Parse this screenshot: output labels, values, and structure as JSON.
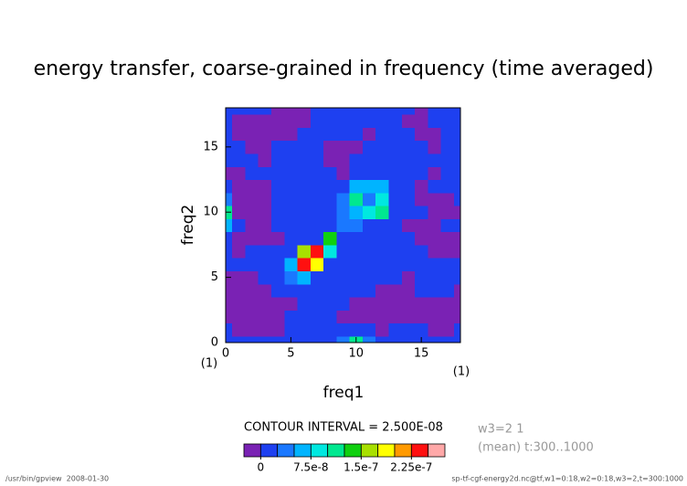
{
  "chart_data": {
    "type": "contour",
    "title": "energy transfer, coarse-grained in frequency (time averaged)",
    "x_label": "freq1",
    "y_label": "freq2",
    "x_unit": "(1)",
    "y_unit": "(1)",
    "xlim": [
      0,
      18
    ],
    "ylim": [
      0,
      18
    ],
    "xticks": [
      0,
      5,
      10,
      15
    ],
    "yticks": [
      0,
      5,
      10,
      15
    ],
    "x": [
      0,
      1,
      2,
      3,
      4,
      5,
      6,
      7,
      8,
      9,
      10,
      11,
      12,
      13,
      14,
      15,
      16,
      17,
      18
    ],
    "y": [
      0,
      1,
      2,
      3,
      4,
      5,
      6,
      7,
      8,
      9,
      10,
      11,
      12,
      13,
      14,
      15,
      16,
      17,
      18
    ],
    "z": [
      [
        1e-08,
        1e-08,
        1e-08,
        1e-08,
        1e-08,
        1e-08,
        1e-08,
        1e-08,
        1e-08,
        4e-08,
        1e-07,
        4e-08,
        1e-08,
        1e-08,
        1e-08,
        1e-08,
        1e-08,
        1e-08,
        1e-08
      ],
      [
        1e-08,
        -1e-08,
        -1e-08,
        -1e-08,
        -1e-08,
        1e-08,
        1e-08,
        1e-08,
        1e-08,
        1e-08,
        1e-08,
        1e-08,
        -1e-08,
        1e-08,
        1e-08,
        1e-08,
        -1e-08,
        -1e-08,
        1e-08
      ],
      [
        -1e-08,
        -1e-08,
        -1e-08,
        -1e-08,
        -1e-08,
        1e-08,
        1e-08,
        1e-08,
        1e-08,
        -1e-08,
        -1e-08,
        -1e-08,
        -1e-08,
        -1e-08,
        -1e-08,
        -1e-08,
        -1e-08,
        -1e-08,
        -1e-08
      ],
      [
        -1e-08,
        -1e-08,
        -1e-08,
        -1e-08,
        -1e-08,
        -1e-08,
        1e-08,
        1e-08,
        1e-08,
        1e-08,
        -1e-08,
        -1e-08,
        -1e-08,
        -1e-08,
        -1e-08,
        -1e-08,
        -1e-08,
        -1e-08,
        -1e-08
      ],
      [
        -1e-08,
        -1e-08,
        -1e-08,
        -1e-08,
        1e-08,
        1e-08,
        1e-08,
        1e-08,
        1e-08,
        1e-08,
        1e-08,
        1e-08,
        -1e-08,
        -1e-08,
        -1e-08,
        1e-08,
        1e-08,
        1e-08,
        -1e-08
      ],
      [
        -1e-08,
        -1e-08,
        -1e-08,
        1e-08,
        1e-08,
        3e-08,
        6e-08,
        1e-08,
        1e-08,
        1e-08,
        1e-08,
        1e-08,
        1e-08,
        1e-08,
        -1e-08,
        1e-08,
        1e-08,
        1e-08,
        1e-08
      ],
      [
        1e-08,
        1e-08,
        1e-08,
        1e-08,
        1e-08,
        6e-08,
        2.4e-07,
        1.8e-07,
        1e-08,
        1e-08,
        1e-08,
        1e-08,
        1e-08,
        1e-08,
        1e-08,
        1e-08,
        1e-08,
        1e-08,
        1e-08
      ],
      [
        1e-08,
        -1e-08,
        1e-08,
        1e-08,
        1e-08,
        1e-08,
        1.7e-07,
        2.3e-07,
        8e-08,
        1e-08,
        1e-08,
        1e-08,
        1e-08,
        1e-08,
        1e-08,
        1e-08,
        -1e-08,
        -1e-08,
        -1e-08
      ],
      [
        1e-08,
        -1e-08,
        -1e-08,
        -1e-08,
        -1e-08,
        1e-08,
        1e-08,
        1e-08,
        1.3e-07,
        1e-08,
        1e-08,
        1e-08,
        1e-08,
        1e-08,
        1e-08,
        -1e-08,
        -1e-08,
        -1e-08,
        -1e-08
      ],
      [
        5e-08,
        1e-08,
        -1e-08,
        -1e-08,
        1e-08,
        1e-08,
        1e-08,
        1e-08,
        1e-08,
        4e-08,
        3e-08,
        1e-08,
        1e-08,
        1e-08,
        -1e-08,
        -1e-08,
        -1e-08,
        1e-08,
        1e-08
      ],
      [
        1.2e-07,
        -1e-08,
        -1e-08,
        -1e-08,
        1e-08,
        1e-08,
        1e-08,
        1e-08,
        1e-08,
        3e-08,
        6e-08,
        8e-08,
        1.2e-07,
        1e-08,
        1e-08,
        1e-08,
        -1e-08,
        -1e-08,
        -1e-08
      ],
      [
        4e-08,
        -1e-08,
        -1e-08,
        -1e-08,
        1e-08,
        1e-08,
        1e-08,
        1e-08,
        1e-08,
        3e-08,
        1.1e-07,
        3e-08,
        9e-08,
        1e-08,
        1e-08,
        -1e-08,
        -1e-08,
        -1e-08,
        1e-08
      ],
      [
        1e-08,
        -1e-08,
        -1e-08,
        -1e-08,
        1e-08,
        1e-08,
        1e-08,
        1e-08,
        1e-08,
        1e-08,
        5.5e-08,
        5.5e-08,
        5.5e-08,
        1e-08,
        1e-08,
        -1e-08,
        1e-08,
        1e-08,
        1e-08
      ],
      [
        -1e-08,
        -1e-08,
        1e-08,
        1e-08,
        1e-08,
        1e-08,
        1e-08,
        1e-08,
        1e-08,
        -1e-08,
        1e-08,
        1e-08,
        1e-08,
        1e-08,
        1e-08,
        1e-08,
        -1e-08,
        1e-08,
        1e-08
      ],
      [
        1e-08,
        1e-08,
        1e-08,
        -1e-08,
        1e-08,
        1e-08,
        1e-08,
        1e-08,
        -1e-08,
        -1e-08,
        1e-08,
        1e-08,
        1e-08,
        1e-08,
        1e-08,
        1e-08,
        1e-08,
        1e-08,
        1e-08
      ],
      [
        1e-08,
        1e-08,
        -1e-08,
        -1e-08,
        1e-08,
        1e-08,
        1e-08,
        1e-08,
        -1e-08,
        -1e-08,
        -1e-08,
        1e-08,
        1e-08,
        1e-08,
        1e-08,
        1e-08,
        -1e-08,
        1e-08,
        1e-08
      ],
      [
        1e-08,
        -1e-08,
        -1e-08,
        -1e-08,
        -1e-08,
        -1e-08,
        1e-08,
        1e-08,
        1e-08,
        1e-08,
        1e-08,
        -1e-08,
        1e-08,
        1e-08,
        1e-08,
        -1e-08,
        -1e-08,
        1e-08,
        1e-08
      ],
      [
        1e-08,
        -1e-08,
        -1e-08,
        -1e-08,
        -1e-08,
        -1e-08,
        -1e-08,
        1e-08,
        1e-08,
        1e-08,
        1e-08,
        1e-08,
        1e-08,
        1e-08,
        -1e-08,
        -1e-08,
        1e-08,
        1e-08,
        1e-08
      ],
      [
        1e-08,
        1e-08,
        1e-08,
        1e-08,
        -1e-08,
        -1e-08,
        -1e-08,
        1e-08,
        1e-08,
        1e-08,
        1e-08,
        1e-08,
        1e-08,
        1e-08,
        1e-08,
        -1e-08,
        1e-08,
        1e-08,
        1e-08
      ]
    ],
    "levels": [
      0,
      2.5e-08,
      5e-08,
      7.5e-08,
      1e-07,
      1.25e-07,
      1.5e-07,
      1.75e-07,
      2e-07,
      2.25e-07,
      2.5e-07
    ],
    "colors": [
      "#7a22b4",
      "#1e40f0",
      "#1a78ff",
      "#00b4ff",
      "#00e8e0",
      "#00e890",
      "#10d010",
      "#a8e000",
      "#ffff00",
      "#ff9a00",
      "#ff1010",
      "#ffa8a8"
    ],
    "colorbar_ticks": [
      0,
      {
        "value": 7.5e-08,
        "label": "7.5e-8"
      },
      {
        "value": 1.5e-07,
        "label": "1.5e-7"
      },
      {
        "value": 2.25e-07,
        "label": "2.25e-7"
      }
    ],
    "contour_interval": "CONTOUR INTERVAL = 2.500E-08",
    "info": [
      "w3=2 1",
      "(mean) t:300..1000"
    ],
    "footer_left": "/usr/bin/gpview  2008-01-30",
    "footer_right": "sp-tf-cgf-energy2d.nc@tf,w1=0:18,w2=0:18,w3=2,t=300:1000"
  }
}
